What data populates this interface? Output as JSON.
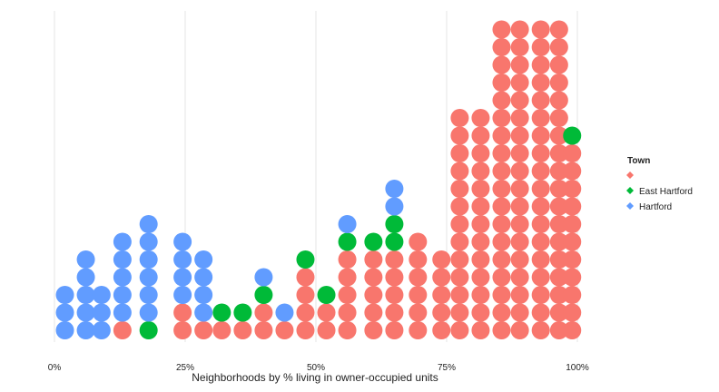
{
  "chart_data": {
    "type": "dot",
    "xlabel": "Neighborhoods by % living in owner-occupied units",
    "ylabel": "",
    "x_unit": "percent",
    "xlim": [
      0,
      100
    ],
    "x_ticks": [
      0,
      25,
      50,
      75,
      100
    ],
    "x_tick_labels": [
      "0%",
      "25%",
      "50%",
      "75%",
      "100%"
    ],
    "grid": "vertical major lines",
    "legend": {
      "title": "Town",
      "position": "right",
      "entries": [
        {
          "label": "",
          "color": "#F8766D"
        },
        {
          "label": "East Hartford",
          "color": "#00BA38"
        },
        {
          "label": "Hartford",
          "color": "#619CFF"
        }
      ]
    },
    "columns": [
      {
        "x": 2,
        "stack": [
          "Hartford",
          "Hartford",
          "Hartford"
        ]
      },
      {
        "x": 6,
        "stack": [
          "Hartford",
          "Hartford",
          "Hartford",
          "Hartford",
          "Hartford"
        ]
      },
      {
        "x": 9,
        "stack": [
          "Hartford",
          "Hartford",
          "Hartford"
        ]
      },
      {
        "x": 13,
        "stack": [
          "",
          "Hartford",
          "Hartford",
          "Hartford",
          "Hartford",
          "Hartford"
        ]
      },
      {
        "x": 18,
        "stack": [
          "East Hartford",
          "Hartford",
          "Hartford",
          "Hartford",
          "Hartford",
          "Hartford",
          "Hartford"
        ]
      },
      {
        "x": 24.5,
        "stack": [
          "",
          "",
          "Hartford",
          "Hartford",
          "Hartford",
          "Hartford"
        ]
      },
      {
        "x": 28.5,
        "stack": [
          "",
          "Hartford",
          "Hartford",
          "Hartford",
          "Hartford"
        ]
      },
      {
        "x": 32,
        "stack": [
          "",
          "East Hartford"
        ]
      },
      {
        "x": 36,
        "stack": [
          "",
          "East Hartford"
        ]
      },
      {
        "x": 40,
        "stack": [
          "",
          "",
          "East Hartford",
          "Hartford"
        ]
      },
      {
        "x": 44,
        "stack": [
          "",
          "Hartford"
        ]
      },
      {
        "x": 48,
        "stack": [
          "",
          "",
          "",
          "",
          "East Hartford"
        ]
      },
      {
        "x": 52,
        "stack": [
          "",
          "",
          "East Hartford"
        ]
      },
      {
        "x": 56,
        "stack": [
          "",
          "",
          "",
          "",
          "",
          "East Hartford",
          "Hartford"
        ]
      },
      {
        "x": 61,
        "stack": [
          "",
          "",
          "",
          "",
          "",
          "East Hartford"
        ]
      },
      {
        "x": 65,
        "stack": [
          "",
          "",
          "",
          "",
          "",
          "East Hartford",
          "East Hartford",
          "Hartford",
          "Hartford"
        ]
      },
      {
        "x": 69.5,
        "stack": [
          "",
          "",
          "",
          "",
          "",
          ""
        ]
      },
      {
        "x": 74,
        "stack": [
          "",
          "",
          "",
          "",
          ""
        ]
      },
      {
        "x": 77.5,
        "stack": [
          "",
          "",
          "",
          "",
          "",
          "",
          "",
          "",
          "",
          "",
          "",
          "",
          ""
        ]
      },
      {
        "x": 81.5,
        "stack": [
          "",
          "",
          "",
          "",
          "",
          "",
          "",
          "",
          "",
          "",
          "",
          "",
          ""
        ]
      },
      {
        "x": 85.5,
        "stack": [
          "",
          "",
          "",
          "",
          "",
          "",
          "",
          "",
          "",
          "",
          "",
          "",
          "",
          "",
          "",
          "",
          "",
          ""
        ]
      },
      {
        "x": 89,
        "stack": [
          "",
          "",
          "",
          "",
          "",
          "",
          "",
          "",
          "",
          "",
          "",
          "",
          "",
          "",
          "",
          "",
          "",
          ""
        ]
      },
      {
        "x": 93,
        "stack": [
          "",
          "",
          "",
          "",
          "",
          "",
          "",
          "",
          "",
          "",
          "",
          "",
          "",
          "",
          "",
          "",
          "",
          ""
        ]
      },
      {
        "x": 96.5,
        "stack": [
          "",
          "",
          "",
          "",
          "",
          "",
          "",
          "",
          "",
          "",
          "",
          "",
          "",
          "",
          "",
          "",
          "",
          ""
        ]
      },
      {
        "x": 99,
        "stack": [
          "",
          "",
          "",
          "",
          "",
          "",
          "",
          "",
          "",
          "",
          "",
          "East Hartford"
        ]
      }
    ]
  }
}
